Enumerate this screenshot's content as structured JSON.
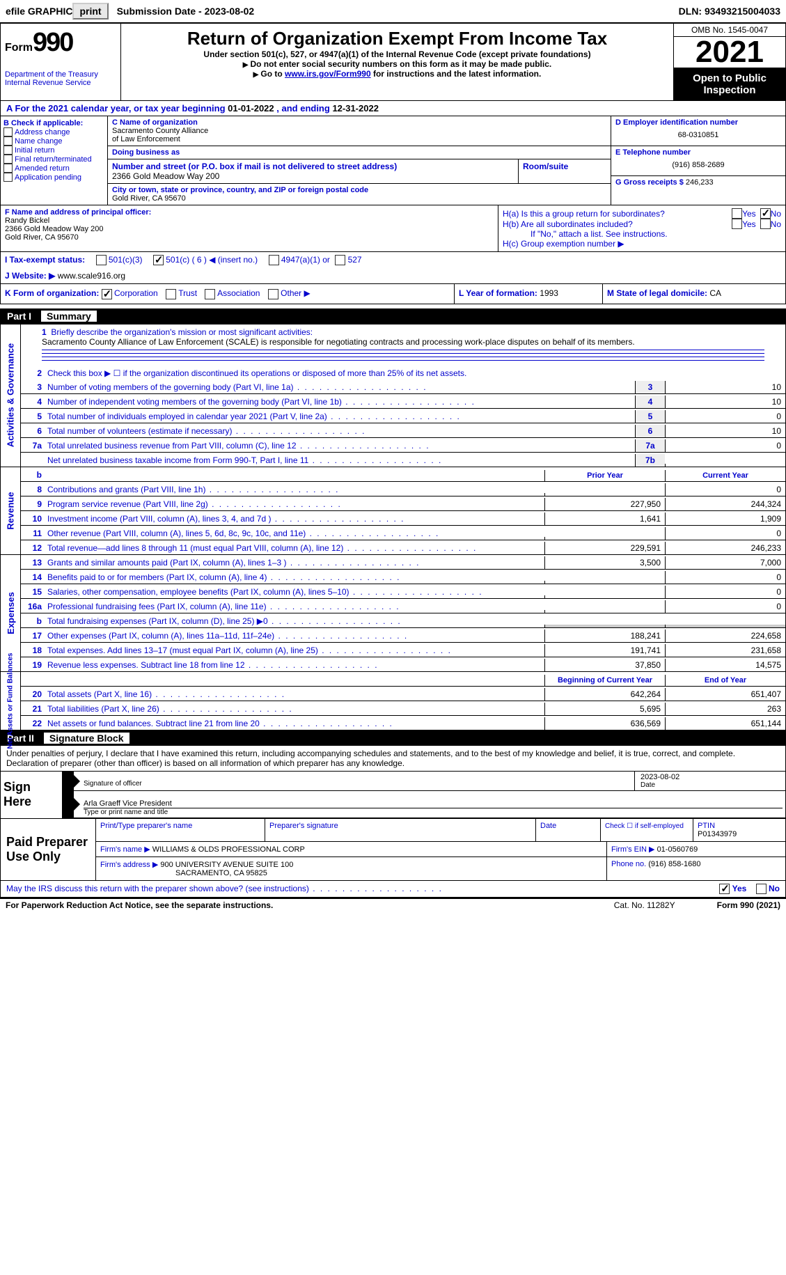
{
  "topbar": {
    "efile": "efile GRAPHIC",
    "print": "print",
    "submission": "Submission Date - 2023-08-02",
    "dln": "DLN: 93493215004033"
  },
  "header": {
    "form_word": "Form",
    "form_num": "990",
    "title": "Return of Organization Exempt From Income Tax",
    "subtitle": "Under section 501(c), 527, or 4947(a)(1) of the Internal Revenue Code (except private foundations)",
    "line2": "Do not enter social security numbers on this form as it may be made public.",
    "line3a": "Go to ",
    "line3_link": "www.irs.gov/Form990",
    "line3b": " for instructions and the latest information.",
    "dept": "Department of the Treasury\nInternal Revenue Service",
    "omb": "OMB No. 1545-0047",
    "year": "2021",
    "open": "Open to Public Inspection"
  },
  "row_a": {
    "prefix": "A For the 2021 calendar year, or tax year beginning ",
    "begin": "01-01-2022",
    "mid": " , and ending ",
    "end": "12-31-2022"
  },
  "section_b": {
    "header": "B Check if applicable:",
    "items": [
      "Address change",
      "Name change",
      "Initial return",
      "Final return/terminated",
      "Amended return",
      "Application pending"
    ]
  },
  "section_c": {
    "name_hdr": "C Name of organization",
    "name1": "Sacramento County Alliance",
    "name2": "of Law Enforcement",
    "dba_hdr": "Doing business as",
    "dba": "",
    "street_hdr": "Number and street (or P.O. box if mail is not delivered to street address)",
    "room_hdr": "Room/suite",
    "street": "2366 Gold Meadow Way 200",
    "city_hdr": "City or town, state or province, country, and ZIP or foreign postal code",
    "city": "Gold River, CA  95670"
  },
  "section_d": {
    "ein_hdr": "D Employer identification number",
    "ein": "68-0310851",
    "phone_hdr": "E Telephone number",
    "phone": "(916) 858-2689",
    "gross_hdr": "G Gross receipts $",
    "gross": "246,233"
  },
  "section_f": {
    "hdr": "F Name and address of principal officer:",
    "name": "Randy Bickel",
    "addr1": "2366 Gold Meadow Way 200",
    "addr2": "Gold River, CA  95670"
  },
  "section_h": {
    "ha": "H(a)  Is this a group return for subordinates?",
    "hb": "H(b)  Are all subordinates included?",
    "hb_note": "If \"No,\" attach a list. See instructions.",
    "hc": "H(c)  Group exemption number ▶",
    "yes": "Yes",
    "no": "No"
  },
  "row_i": {
    "label": "I   Tax-exempt status:",
    "opt1": "501(c)(3)",
    "opt2": "501(c) ( 6 ) ◀ (insert no.)",
    "opt3": "4947(a)(1) or",
    "opt4": "527"
  },
  "row_j": {
    "label": "J   Website: ▶",
    "value": "www.scale916.org"
  },
  "row_k": {
    "k_label": "K Form of organization:",
    "corp": "Corporation",
    "trust": "Trust",
    "assoc": "Association",
    "other": "Other ▶",
    "l_label": "L Year of formation:",
    "l_val": "1993",
    "m_label": "M State of legal domicile:",
    "m_val": "CA"
  },
  "part1": {
    "num": "Part I",
    "title": "Summary"
  },
  "summary": {
    "vtab1": "Activities & Governance",
    "line1_hdr": "Briefly describe the organization's mission or most significant activities:",
    "line1_txt": "Sacramento County Alliance of Law Enforcement (SCALE) is responsible for negotiating contracts and processing work-place disputes on behalf of its members.",
    "line2": "Check this box ▶ ☐ if the organization discontinued its operations or disposed of more than 25% of its net assets.",
    "rows_gov": [
      {
        "n": "3",
        "t": "Number of voting members of the governing body (Part VI, line 1a)",
        "b": "3",
        "v": "10"
      },
      {
        "n": "4",
        "t": "Number of independent voting members of the governing body (Part VI, line 1b)",
        "b": "4",
        "v": "10"
      },
      {
        "n": "5",
        "t": "Total number of individuals employed in calendar year 2021 (Part V, line 2a)",
        "b": "5",
        "v": "0"
      },
      {
        "n": "6",
        "t": "Total number of volunteers (estimate if necessary)",
        "b": "6",
        "v": "10"
      },
      {
        "n": "7a",
        "t": "Total unrelated business revenue from Part VIII, column (C), line 12",
        "b": "7a",
        "v": "0"
      },
      {
        "n": "",
        "t": "Net unrelated business taxable income from Form 990-T, Part I, line 11",
        "b": "7b",
        "v": ""
      }
    ],
    "vtab2": "Revenue",
    "prior_hdr": "Prior Year",
    "current_hdr": "Current Year",
    "rows_rev": [
      {
        "n": "8",
        "t": "Contributions and grants (Part VIII, line 1h)",
        "p": "",
        "c": "0"
      },
      {
        "n": "9",
        "t": "Program service revenue (Part VIII, line 2g)",
        "p": "227,950",
        "c": "244,324"
      },
      {
        "n": "10",
        "t": "Investment income (Part VIII, column (A), lines 3, 4, and 7d )",
        "p": "1,641",
        "c": "1,909"
      },
      {
        "n": "11",
        "t": "Other revenue (Part VIII, column (A), lines 5, 6d, 8c, 9c, 10c, and 11e)",
        "p": "",
        "c": "0"
      },
      {
        "n": "12",
        "t": "Total revenue—add lines 8 through 11 (must equal Part VIII, column (A), line 12)",
        "p": "229,591",
        "c": "246,233"
      }
    ],
    "vtab3": "Expenses",
    "rows_exp": [
      {
        "n": "13",
        "t": "Grants and similar amounts paid (Part IX, column (A), lines 1–3 )",
        "p": "3,500",
        "c": "7,000"
      },
      {
        "n": "14",
        "t": "Benefits paid to or for members (Part IX, column (A), line 4)",
        "p": "",
        "c": "0"
      },
      {
        "n": "15",
        "t": "Salaries, other compensation, employee benefits (Part IX, column (A), lines 5–10)",
        "p": "",
        "c": "0"
      },
      {
        "n": "16a",
        "t": "Professional fundraising fees (Part IX, column (A), line 11e)",
        "p": "",
        "c": "0"
      },
      {
        "n": "b",
        "t": "Total fundraising expenses (Part IX, column (D), line 25) ▶0",
        "p": "shade",
        "c": "shade"
      },
      {
        "n": "17",
        "t": "Other expenses (Part IX, column (A), lines 11a–11d, 11f–24e)",
        "p": "188,241",
        "c": "224,658"
      },
      {
        "n": "18",
        "t": "Total expenses. Add lines 13–17 (must equal Part IX, column (A), line 25)",
        "p": "191,741",
        "c": "231,658"
      },
      {
        "n": "19",
        "t": "Revenue less expenses. Subtract line 18 from line 12",
        "p": "37,850",
        "c": "14,575"
      }
    ],
    "vtab4": "Net Assets or Fund Balances",
    "begin_hdr": "Beginning of Current Year",
    "end_hdr": "End of Year",
    "rows_net": [
      {
        "n": "20",
        "t": "Total assets (Part X, line 16)",
        "p": "642,264",
        "c": "651,407"
      },
      {
        "n": "21",
        "t": "Total liabilities (Part X, line 26)",
        "p": "5,695",
        "c": "263"
      },
      {
        "n": "22",
        "t": "Net assets or fund balances. Subtract line 21 from line 20",
        "p": "636,569",
        "c": "651,144"
      }
    ]
  },
  "part2": {
    "num": "Part II",
    "title": "Signature Block"
  },
  "perjury": "Under penalties of perjury, I declare that I have examined this return, including accompanying schedules and statements, and to the best of my knowledge and belief, it is true, correct, and complete. Declaration of preparer (other than officer) is based on all information of which preparer has any knowledge.",
  "sign": {
    "label": "Sign Here",
    "sig_lbl": "Signature of officer",
    "date": "2023-08-02",
    "date_lbl": "Date",
    "name": "Arla Graeff  Vice President",
    "name_lbl": "Type or print name and title"
  },
  "paid": {
    "label": "Paid Preparer Use Only",
    "h1": "Print/Type preparer's name",
    "h2": "Preparer's signature",
    "h3": "Date",
    "h4": "Check ☐ if self-employed",
    "h5": "PTIN",
    "ptin": "P01343979",
    "firm_name_lbl": "Firm's name    ▶",
    "firm_name": "WILLIAMS & OLDS PROFESSIONAL CORP",
    "firm_ein_lbl": "Firm's EIN ▶",
    "firm_ein": "01-0560769",
    "firm_addr_lbl": "Firm's address ▶",
    "firm_addr1": "900 UNIVERSITY AVENUE SUITE 100",
    "firm_addr2": "SACRAMENTO, CA  95825",
    "phone_lbl": "Phone no.",
    "phone": "(916) 858-1680"
  },
  "discuss": {
    "q": "May the IRS discuss this return with the preparer shown above? (see instructions)",
    "yes": "Yes",
    "no": "No"
  },
  "footer": {
    "left": "For Paperwork Reduction Act Notice, see the separate instructions.",
    "mid": "Cat. No. 11282Y",
    "right": "Form 990 (2021)"
  }
}
